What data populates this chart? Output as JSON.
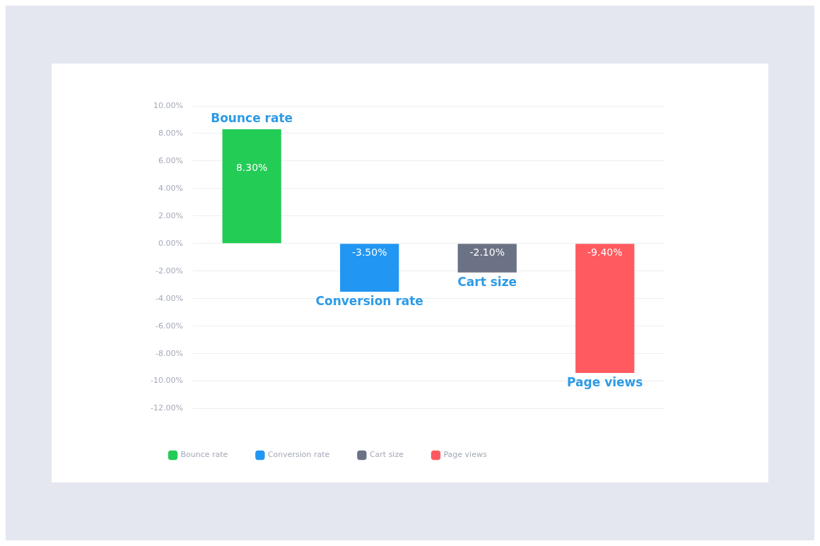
{
  "chart_data": {
    "type": "bar",
    "categories": [
      null,
      null,
      null,
      null
    ],
    "series": [
      {
        "name": "Bounce rate",
        "color": "#22cc55",
        "values": [
          8.3,
          null,
          null,
          null
        ],
        "value_labels": [
          "8.30%",
          null,
          null,
          null
        ]
      },
      {
        "name": "Conversion rate",
        "color": "#2196f3",
        "values": [
          null,
          -3.5,
          null,
          null
        ],
        "value_labels": [
          null,
          "-3.50%",
          null,
          null
        ]
      },
      {
        "name": "Cart size",
        "color": "#6b7285",
        "values": [
          null,
          null,
          -2.1,
          null
        ],
        "value_labels": [
          null,
          null,
          "-2.10%",
          null
        ]
      },
      {
        "name": "Page views",
        "color": "#ff5a5f",
        "values": [
          null,
          null,
          null,
          -9.4
        ],
        "value_labels": [
          null,
          null,
          null,
          "-9.40%"
        ]
      }
    ],
    "ylim": [
      -12,
      10
    ],
    "yticks": [
      {
        "value": 10,
        "label": "10.00%"
      },
      {
        "value": 8,
        "label": "8.00%"
      },
      {
        "value": 6,
        "label": "6.00%"
      },
      {
        "value": 4,
        "label": "4.00%"
      },
      {
        "value": 2,
        "label": "2.00%"
      },
      {
        "value": 0,
        "label": "0.00%"
      },
      {
        "value": -2,
        "label": "-2.00%"
      },
      {
        "value": -4,
        "label": "-4.00%"
      },
      {
        "value": -6,
        "label": "-6.00%"
      },
      {
        "value": -8,
        "label": "-8.00%"
      },
      {
        "value": -10,
        "label": "-10.00%"
      },
      {
        "value": -12,
        "label": "-12.00%"
      }
    ],
    "grid": "y",
    "legend": "bottom"
  }
}
